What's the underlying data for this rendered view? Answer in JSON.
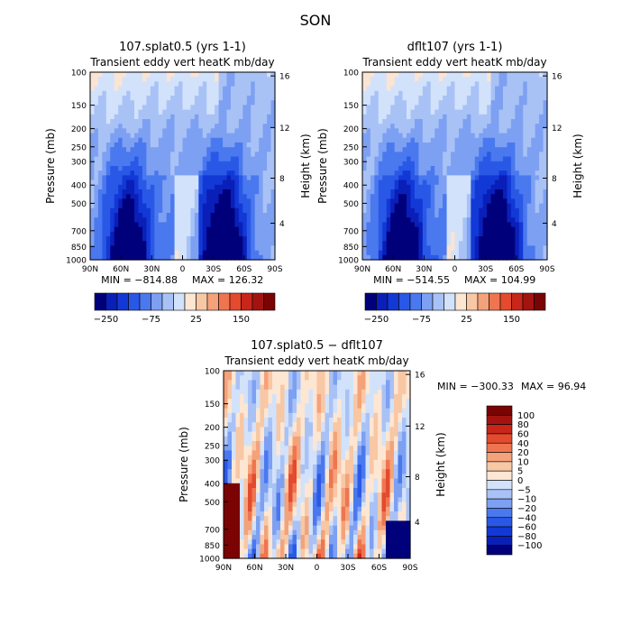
{
  "page_title": "SON",
  "colors": {
    "blues": [
      "#00007a",
      "#0a1fb8",
      "#1238d6",
      "#2a58e6",
      "#4a78ee",
      "#7da0f2",
      "#a9c2f6",
      "#d2e2fb"
    ],
    "reds": [
      "#fde6d2",
      "#f8c7a4",
      "#f4a27a",
      "#ee7550",
      "#e34a2e",
      "#c8261a",
      "#a31410",
      "#7a0303"
    ]
  },
  "chart_data": [
    {
      "id": "top-left",
      "type": "heatmap",
      "title": "107.splat0.5 (yrs 1-1)",
      "subtitle": "Transient eddy vert heatK mb/day",
      "ylabel": "Pressure (mb)",
      "y2label": "Height (km)",
      "x_ticks": [
        "90N",
        "60N",
        "30N",
        "0",
        "30S",
        "60S",
        "90S"
      ],
      "y_ticks": [
        "100",
        "150",
        "200",
        "250",
        "300",
        "400",
        "500",
        "700",
        "850",
        "1000"
      ],
      "y2_ticks": [
        "16",
        "12",
        "8",
        "4"
      ],
      "min_text": "MIN = −814.88",
      "max_text": "MAX = 126.32",
      "colorbar_labels": [
        "−250",
        "−75",
        "25",
        "150"
      ]
    },
    {
      "id": "top-right",
      "type": "heatmap",
      "title": "dflt107 (yrs 1-1)",
      "subtitle": "Transient eddy vert heatK mb/day",
      "ylabel": "Pressure (mb)",
      "y2label": "Height (km)",
      "x_ticks": [
        "90N",
        "60N",
        "30N",
        "0",
        "30S",
        "60S",
        "90S"
      ],
      "y_ticks": [
        "100",
        "150",
        "200",
        "250",
        "300",
        "400",
        "500",
        "700",
        "850",
        "1000"
      ],
      "y2_ticks": [
        "16",
        "12",
        "8",
        "4"
      ],
      "min_text": "MIN = −514.55",
      "max_text": "MAX = 104.99",
      "colorbar_labels": [
        "−250",
        "−75",
        "25",
        "150"
      ]
    },
    {
      "id": "bottom-diff",
      "type": "heatmap",
      "title": "107.splat0.5 − dflt107",
      "subtitle": "Transient eddy vert heatK mb/day",
      "ylabel": "Pressure (mb)",
      "y2label": "Height (km)",
      "x_ticks": [
        "90N",
        "60N",
        "30N",
        "0",
        "30S",
        "60S",
        "90S"
      ],
      "y_ticks": [
        "100",
        "150",
        "200",
        "250",
        "300",
        "400",
        "500",
        "700",
        "850",
        "1000"
      ],
      "y2_ticks": [
        "16",
        "12",
        "8",
        "4"
      ],
      "min_text": "MIN = −300.33",
      "max_text": "MAX =  96.94",
      "colorbar_labels": [
        "100",
        "80",
        "60",
        "40",
        "20",
        "10",
        "5",
        "0",
        "−5",
        "−10",
        "−20",
        "−40",
        "−60",
        "−80",
        "−100"
      ]
    }
  ]
}
